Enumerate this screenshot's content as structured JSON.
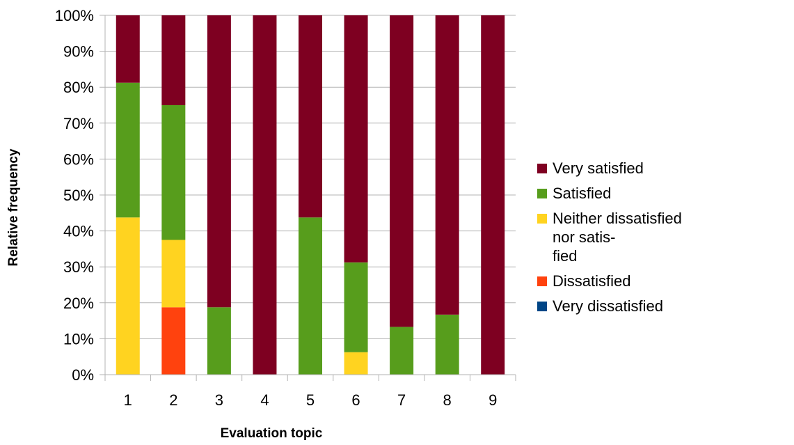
{
  "chart_data": {
    "type": "bar",
    "stacked": true,
    "stacked_percent": true,
    "xlabel": "Evaluation topic",
    "ylabel": "Relative frequency",
    "categories": [
      "1",
      "2",
      "3",
      "4",
      "5",
      "6",
      "7",
      "8",
      "9"
    ],
    "ylim": [
      0,
      100
    ],
    "yticks": [
      "0%",
      "10%",
      "20%",
      "30%",
      "40%",
      "50%",
      "60%",
      "70%",
      "80%",
      "90%",
      "100%"
    ],
    "grid": true,
    "legend_position": "right",
    "series": [
      {
        "name": "Very dissatisfied",
        "color": "#004586",
        "values": [
          0,
          0,
          0,
          0,
          0,
          0,
          0,
          0,
          0
        ]
      },
      {
        "name": "Dissatisfied",
        "color": "#ff420e",
        "values": [
          0,
          18.75,
          0,
          0,
          0,
          0,
          0,
          0,
          0
        ]
      },
      {
        "name": "Neither dissatisfied nor satis-fied",
        "color": "#ffd320",
        "values": [
          43.75,
          18.75,
          0,
          0,
          0,
          6.25,
          0,
          0,
          0
        ]
      },
      {
        "name": "Satisfied",
        "color": "#579d1c",
        "values": [
          37.5,
          37.5,
          18.75,
          0,
          43.75,
          25,
          13.3,
          16.7,
          0
        ]
      },
      {
        "name": "Very satisfied",
        "color": "#7e0021",
        "values": [
          18.75,
          25,
          81.25,
          100,
          56.25,
          68.75,
          86.7,
          83.3,
          100
        ]
      }
    ],
    "legend_order": [
      "Very satisfied",
      "Satisfied",
      "Neither dissatisfied nor satis-fied",
      "Dissatisfied",
      "Very dissatisfied"
    ],
    "legend_lines": {
      "Very satisfied": [
        "Very satisfied"
      ],
      "Satisfied": [
        "Satisfied"
      ],
      "Neither dissatisfied nor satis-fied": [
        "Neither dissatisfied nor satis-",
        "fied"
      ],
      "Dissatisfied": [
        "Dissatisfied"
      ],
      "Very dissatisfied": [
        "Very dissatisfied"
      ]
    },
    "axis_color": "#b3b3b3"
  }
}
